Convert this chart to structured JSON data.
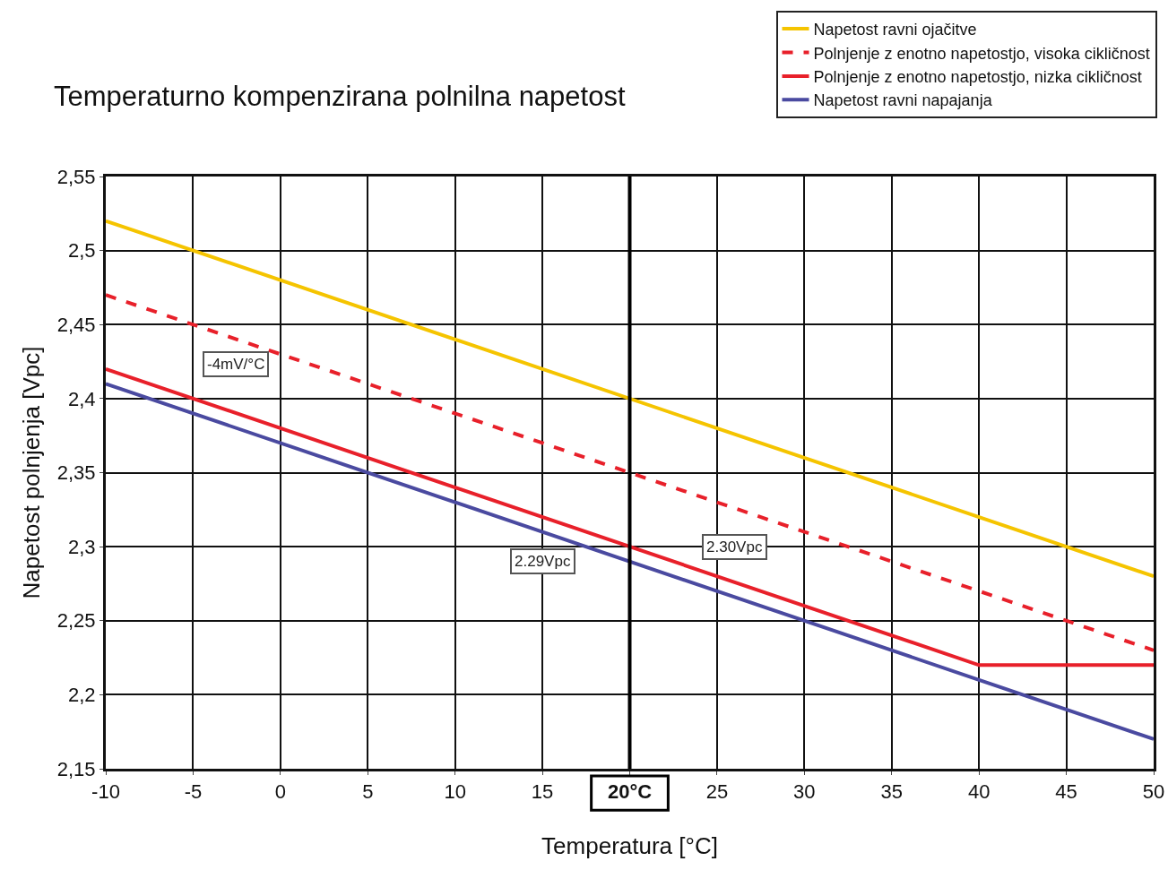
{
  "chart_data": {
    "type": "line",
    "title": "Temperaturno kompenzirana polnilna napetost",
    "xlabel": "Temperatura [°C]",
    "ylabel": "Napetost polnjenja [Vpc]",
    "x": [
      -10,
      40,
      50
    ],
    "series": [
      {
        "name": "Napetost ravni ojačitve",
        "color": "#f5c400",
        "values": [
          2.52,
          2.32,
          2.28
        ]
      },
      {
        "name": "Polnjenje z enotno napetostjo, visoka cikličnost",
        "color": "#e8202a",
        "line_style": "dashed",
        "values": [
          2.47,
          2.27,
          2.23
        ]
      },
      {
        "name": "Polnjenje z enotno napetostjo, nizka cikličnost",
        "color": "#e8202a",
        "values": [
          2.42,
          2.22,
          2.22
        ]
      },
      {
        "name": "Napetost ravni napajanja",
        "color": "#4a4aa0",
        "values": [
          2.41,
          2.21,
          2.17
        ]
      }
    ],
    "xlim": [
      -10,
      50
    ],
    "xticks": [
      -10,
      -5,
      0,
      5,
      10,
      15,
      {
        "value": 20,
        "label": "20°C"
      },
      25,
      30,
      35,
      40,
      45,
      50
    ],
    "ylim": [
      2.15,
      2.55
    ],
    "yticks": [
      {
        "value": 2.15,
        "label": "2,15"
      },
      {
        "value": 2.2,
        "label": "2,2"
      },
      {
        "value": 2.25,
        "label": "2,25"
      },
      {
        "value": 2.3,
        "label": "2,3"
      },
      {
        "value": 2.35,
        "label": "2,35"
      },
      {
        "value": 2.4,
        "label": "2,4"
      },
      {
        "value": 2.45,
        "label": "2,45"
      },
      {
        "value": 2.5,
        "label": "2,5"
      },
      {
        "value": 2.55,
        "label": "2,55"
      }
    ],
    "ref_lines": [
      {
        "axis": "x",
        "value": 20,
        "color": "#000000"
      }
    ],
    "annotations": [
      "-4mV/°C",
      "2.29Vpc",
      "2.30Vpc"
    ],
    "grid": true,
    "legend": "top right",
    "marker": "none",
    "line_style": "solid"
  }
}
